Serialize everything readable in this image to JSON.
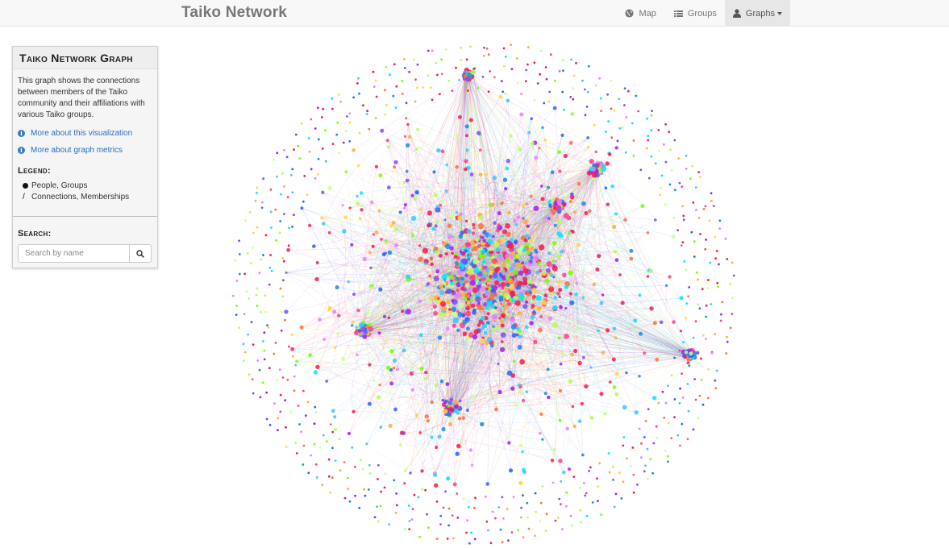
{
  "navbar": {
    "brand": "Taiko Network",
    "items": [
      {
        "label": "Map",
        "icon": "globe-icon"
      },
      {
        "label": "Groups",
        "icon": "list-icon"
      },
      {
        "label": "Graphs",
        "icon": "user-icon",
        "active": true
      }
    ]
  },
  "panel": {
    "title": "Taiko Network Graph",
    "description": "This graph shows the connections between members of the Taiko community and their affiliations with various Taiko groups.",
    "links": [
      {
        "label": "More about this visualization",
        "icon": "info-icon"
      },
      {
        "label": "More about graph metrics",
        "icon": "info-icon"
      }
    ],
    "legend_label": "Legend:",
    "legend": [
      {
        "symbol": "dot",
        "label": "People, Groups"
      },
      {
        "symbol": "slash",
        "label": "Connections, Memberships"
      }
    ],
    "search_label": "Search:",
    "search_placeholder": "Search by name"
  },
  "graph": {
    "node_colors": [
      "#ff1744",
      "#e91e63",
      "#ff4081",
      "#a020f0",
      "#7c4dff",
      "#2962ff",
      "#1e88e5",
      "#40c4ff",
      "#00e5ff",
      "#76ff03",
      "#b2ff59",
      "#ffd740",
      "#ffab40",
      "#ff6e40",
      "#ea80fc",
      "#ccff90"
    ]
  }
}
